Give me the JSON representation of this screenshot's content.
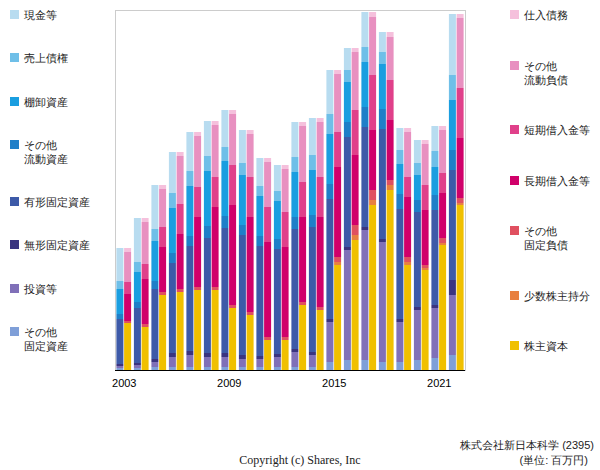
{
  "chart_data": [
    {
      "type": "bar",
      "title": "株式会社新日本科学 (2395)",
      "annotations": [
        "(単位: 百万円)",
        "Copyright (c) Shares, Inc"
      ],
      "x": [
        2003,
        2004,
        2005,
        2006,
        2007,
        2008,
        2009,
        2010,
        2011,
        2012,
        2013,
        2014,
        2015,
        2016,
        2017,
        2018,
        2019,
        2020,
        2021,
        2022
      ],
      "xlim": [
        2002.5,
        2022.5
      ],
      "xticks": [
        2003,
        2009,
        2015,
        2021
      ],
      "ylim": [
        0,
        72000
      ],
      "yticks": [],
      "tick_labels": "x",
      "stacked": true,
      "legend": "left",
      "series": [
        {
          "name": "その他\n固定資産",
          "color": "#7f9fd8",
          "values": [
            400,
            400,
            600,
            600,
            600,
            600,
            600,
            600,
            600,
            600,
            600,
            600,
            1600,
            2000,
            2000,
            1600,
            1600,
            2000,
            2400,
            3000
          ]
        },
        {
          "name": "投資等",
          "color": "#8070b8",
          "values": [
            400,
            600,
            1000,
            2000,
            2400,
            2000,
            2000,
            1600,
            1600,
            2000,
            3000,
            2400,
            8000,
            22000,
            26000,
            24000,
            8000,
            10000,
            10000,
            12000
          ]
        },
        {
          "name": "無形固定資産",
          "color": "#3a3480",
          "values": [
            400,
            400,
            600,
            800,
            800,
            800,
            800,
            800,
            600,
            600,
            600,
            600,
            600,
            600,
            600,
            600,
            600,
            600,
            600,
            3000
          ]
        },
        {
          "name": "有形固定資産",
          "color": "#3d5aa8",
          "values": [
            9000,
            11000,
            14000,
            18000,
            21000,
            23000,
            25000,
            24000,
            22000,
            21000,
            24000,
            25000,
            24000,
            22000,
            20000,
            22000,
            22000,
            19000,
            19000,
            22000
          ]
        },
        {
          "name": "その他\n流動資産",
          "color": "#1f7fc8",
          "values": [
            1000,
            1200,
            1600,
            2000,
            2000,
            2400,
            2400,
            2000,
            2000,
            2000,
            2400,
            2400,
            3000,
            3000,
            4000,
            4000,
            3000,
            2400,
            3000,
            4000
          ]
        },
        {
          "name": "棚卸資産",
          "color": "#1a9ee0",
          "values": [
            5000,
            6000,
            8000,
            9000,
            10000,
            11000,
            11000,
            10000,
            8000,
            7600,
            9000,
            9000,
            10000,
            8000,
            9000,
            9000,
            6000,
            5000,
            5600,
            10000
          ]
        },
        {
          "name": "売上債権",
          "color": "#6fbfe8",
          "values": [
            1600,
            2000,
            2400,
            3000,
            3000,
            3000,
            2800,
            2400,
            2000,
            2000,
            3000,
            3000,
            4000,
            2400,
            3000,
            2400,
            2800,
            2400,
            3200,
            5000
          ]
        },
        {
          "name": "現金等",
          "color": "#b8dcf0",
          "values": [
            6600,
            8800,
            8800,
            8200,
            7800,
            7000,
            7400,
            6600,
            5600,
            5200,
            7000,
            7400,
            8800,
            4400,
            7000,
            4000,
            4400,
            4600,
            5000,
            12200
          ]
        }
      ]
    },
    {
      "type": "bar",
      "x": [
        2003,
        2004,
        2005,
        2006,
        2007,
        2008,
        2009,
        2010,
        2011,
        2012,
        2013,
        2014,
        2015,
        2016,
        2017,
        2018,
        2019,
        2020,
        2021,
        2022
      ],
      "stacked": true,
      "legend": "right",
      "series": [
        {
          "name": "株主資本",
          "color": "#f0c000",
          "values": [
            9400,
            8600,
            15000,
            15600,
            16000,
            16000,
            12400,
            11000,
            6000,
            6000,
            13000,
            12000,
            21000,
            26000,
            33000,
            36000,
            21000,
            20000,
            25000,
            33000
          ]
        },
        {
          "name": "少数株主持分",
          "color": "#e88040",
          "values": [
            0,
            0,
            0,
            0,
            0,
            0,
            0,
            0,
            0,
            0,
            0,
            0,
            600,
            1000,
            1000,
            1000,
            600,
            400,
            400,
            400
          ]
        },
        {
          "name": "その他\n固定負債",
          "color": "#e05060",
          "values": [
            400,
            600,
            600,
            600,
            600,
            600,
            600,
            600,
            600,
            600,
            600,
            600,
            1000,
            2000,
            2000,
            1000,
            1000,
            600,
            1000,
            1000
          ]
        },
        {
          "name": "長期借入金等",
          "color": "#d0006a",
          "values": [
            5400,
            9000,
            9000,
            11000,
            14000,
            16000,
            20000,
            19000,
            19000,
            18000,
            17000,
            18000,
            18000,
            14000,
            12000,
            12000,
            12000,
            11000,
            9000,
            12000
          ]
        },
        {
          "name": "短期借入金等",
          "color": "#e0408a",
          "values": [
            2400,
            3000,
            4000,
            6000,
            6000,
            6000,
            8000,
            8000,
            7000,
            7000,
            7000,
            8000,
            7000,
            9000,
            11000,
            8000,
            4000,
            5000,
            4000,
            10000
          ]
        },
        {
          "name": "その他\n流動負債",
          "color": "#e890c0",
          "values": [
            6000,
            8400,
            7600,
            9600,
            10200,
            10400,
            10200,
            8600,
            9000,
            8600,
            11200,
            11000,
            11600,
            11600,
            11600,
            8600,
            9000,
            8200,
            8600,
            14000
          ]
        },
        {
          "name": "仕入債務",
          "color": "#f5c0dc",
          "values": [
            800,
            800,
            800,
            800,
            800,
            800,
            800,
            800,
            800,
            800,
            800,
            800,
            800,
            800,
            1000,
            1000,
            800,
            800,
            800,
            800
          ]
        }
      ]
    }
  ]
}
